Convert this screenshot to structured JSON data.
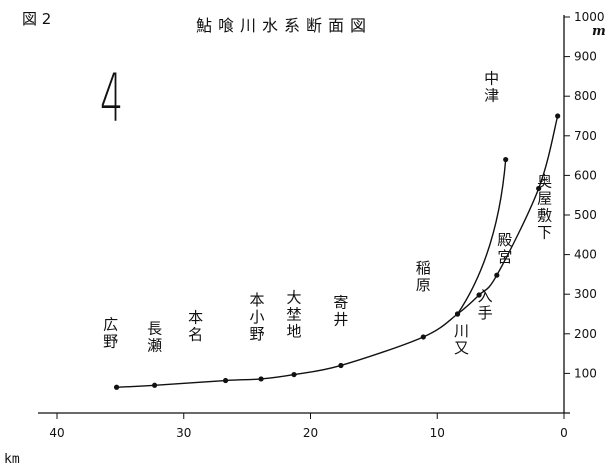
{
  "figure_label": "図 2",
  "handwritten_number": "4",
  "units": {
    "y": "m",
    "x": "km"
  },
  "chart_data": {
    "type": "line",
    "title": "鮎喰川水系断面図",
    "x_axis": {
      "range": [
        40,
        0
      ],
      "reversed": true,
      "ticks": [
        40,
        30,
        20,
        10,
        0
      ],
      "unit": "km"
    },
    "y_axis": {
      "range": [
        0,
        1000
      ],
      "ticks": [
        100,
        200,
        300,
        400,
        500,
        600,
        700,
        800,
        900,
        1000
      ],
      "unit": "m",
      "position": "right"
    },
    "grid": false,
    "legend": "none",
    "series": [
      {
        "points": [
          {
            "x": 35.3,
            "y": 65,
            "label": "広野"
          },
          {
            "x": 32.3,
            "y": 70,
            "label": "長瀬"
          },
          {
            "x": 26.7,
            "y": 82,
            "label": "本名"
          },
          {
            "x": 23.9,
            "y": 86,
            "label": "本小野"
          },
          {
            "x": 21.3,
            "y": 97,
            "label": "大埜地"
          },
          {
            "x": 17.6,
            "y": 120,
            "label": "寄井"
          },
          {
            "x": 11.1,
            "y": 192,
            "label": "稲原"
          },
          {
            "x": 8.4,
            "y": 250,
            "label": "川又"
          },
          {
            "x": 6.7,
            "y": 298,
            "label": "入手"
          },
          {
            "x": 5.3,
            "y": 348,
            "label": "殿宮"
          },
          {
            "x": 2.0,
            "y": 567,
            "label": "奥屋敷下"
          },
          {
            "x": 0.5,
            "y": 750,
            "label": ""
          }
        ]
      },
      {
        "points": [
          {
            "x": 8.4,
            "y": 250,
            "label": ""
          },
          {
            "x": 4.6,
            "y": 640,
            "label": "中津"
          }
        ]
      }
    ]
  }
}
